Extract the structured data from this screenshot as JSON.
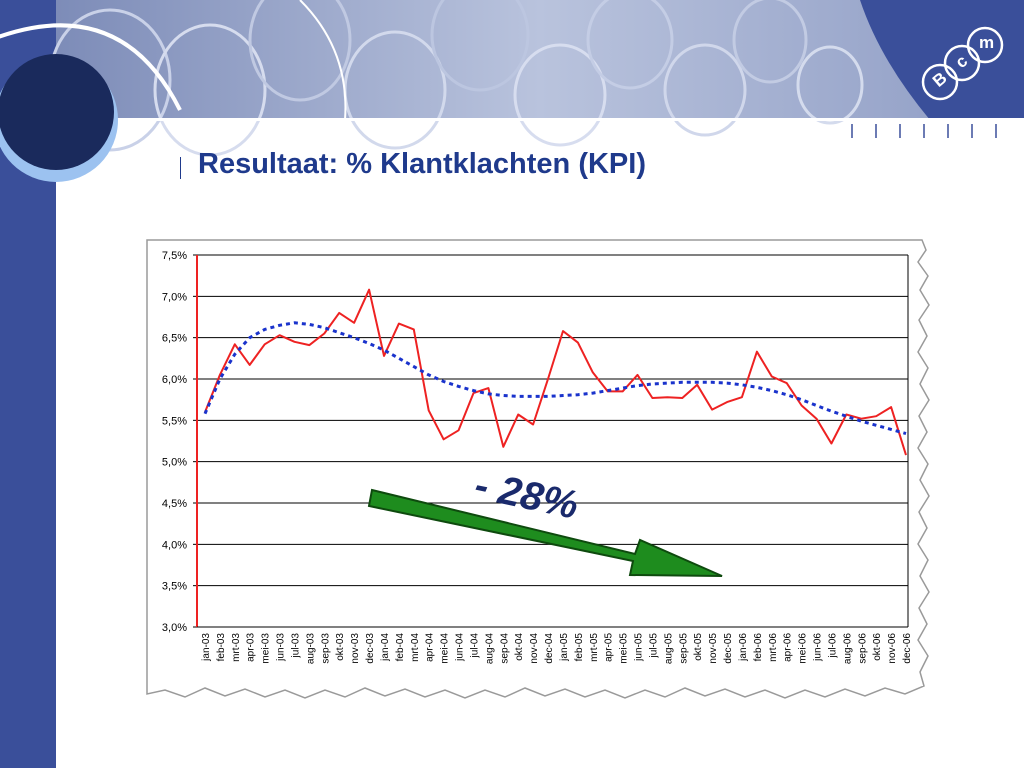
{
  "slide": {
    "title": "Resultaat: % Klantklachten (KPI)",
    "annotation": "- 28%",
    "logo_letters": [
      "m",
      "c",
      "B"
    ],
    "colors": {
      "brand_blue": "#3a4f9a",
      "title_blue": "#1f3a8c",
      "light_blue": "#9cc2f0",
      "navy": "#1a2a5c",
      "arrow_green": "#1e8c1e"
    }
  },
  "chart_data": {
    "type": "line",
    "title": "",
    "xlabel": "",
    "ylabel": "",
    "ylim": [
      3.0,
      7.5
    ],
    "grid": true,
    "y_ticks": [
      "3,0%",
      "3,5%",
      "4,0%",
      "4,5%",
      "5,0%",
      "5,5%",
      "6,0%",
      "6,5%",
      "7,0%",
      "7,5%"
    ],
    "categories": [
      "jan-03",
      "feb-03",
      "mrt-03",
      "apr-03",
      "mei-03",
      "jun-03",
      "jul-03",
      "aug-03",
      "sep-03",
      "okt-03",
      "nov-03",
      "dec-03",
      "jan-04",
      "feb-04",
      "mrt-04",
      "apr-04",
      "mei-04",
      "jun-04",
      "jul-04",
      "aug-04",
      "sep-04",
      "okt-04",
      "nov-04",
      "dec-04",
      "jan-05",
      "feb-05",
      "mrt-05",
      "apr-05",
      "mei-05",
      "jun-05",
      "jul-05",
      "aug-05",
      "sep-05",
      "okt-05",
      "nov-05",
      "dec-05",
      "jan-06",
      "feb-06",
      "mrt-06",
      "apr-06",
      "mei-06",
      "jun-06",
      "jul-06",
      "aug-06",
      "sep-06",
      "okt-06",
      "nov-06",
      "dec-06"
    ],
    "series": [
      {
        "kind": "actual",
        "color": "#ee2222",
        "values": [
          5.6,
          6.05,
          6.42,
          6.17,
          6.42,
          6.53,
          6.45,
          6.41,
          6.55,
          6.8,
          6.68,
          7.08,
          6.28,
          6.67,
          6.6,
          5.62,
          5.27,
          5.38,
          5.83,
          5.89,
          5.18,
          5.57,
          5.45,
          6.0,
          6.58,
          6.44,
          6.08,
          5.85,
          5.85,
          6.05,
          5.77,
          5.78,
          5.77,
          5.93,
          5.63,
          5.72,
          5.78,
          6.33,
          6.03,
          5.95,
          5.68,
          5.52,
          5.22,
          5.57,
          5.52,
          5.55,
          5.66,
          5.08
        ]
      },
      {
        "kind": "trend",
        "color": "#1a33cc",
        "dashed": true,
        "values": [
          5.58,
          6.0,
          6.3,
          6.5,
          6.6,
          6.65,
          6.68,
          6.66,
          6.62,
          6.56,
          6.5,
          6.43,
          6.35,
          6.25,
          6.15,
          6.05,
          5.97,
          5.91,
          5.86,
          5.82,
          5.8,
          5.79,
          5.79,
          5.79,
          5.8,
          5.81,
          5.83,
          5.86,
          5.89,
          5.92,
          5.94,
          5.95,
          5.96,
          5.96,
          5.96,
          5.95,
          5.93,
          5.9,
          5.86,
          5.81,
          5.75,
          5.68,
          5.61,
          5.55,
          5.49,
          5.44,
          5.39,
          5.34
        ]
      }
    ]
  }
}
